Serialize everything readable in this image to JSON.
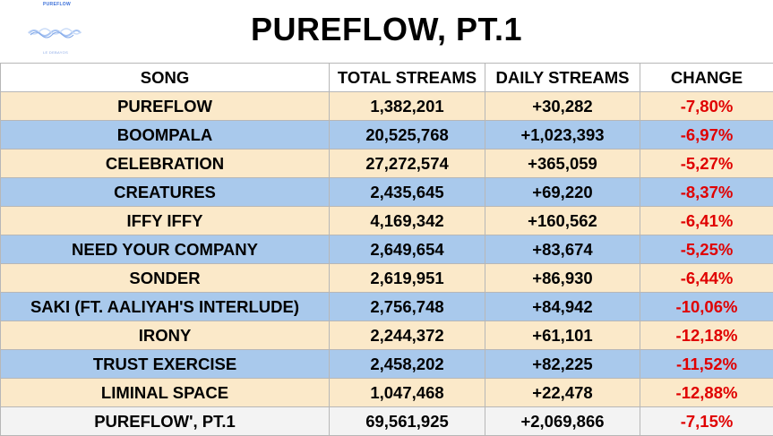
{
  "title": "PUREFLOW, PT.1",
  "logo": {
    "top_text": "PUREFLOW",
    "bottom_text": "LE DEBAYOS",
    "color": "#3a6fd8"
  },
  "colors": {
    "cream": "#fbe9c9",
    "blue": "#a9c9ec",
    "negative": "#e00000",
    "total_row": "#f3f3f3"
  },
  "chart_data": {
    "type": "table",
    "title": "PUREFLOW, PT.1",
    "columns": [
      "SONG",
      "TOTAL STREAMS",
      "DAILY STREAMS",
      "CHANGE"
    ],
    "rows": [
      {
        "song": "PUREFLOW",
        "total": "1,382,201",
        "daily": "+30,282",
        "change": "-7,80%",
        "style": "cream"
      },
      {
        "song": "BOOMPALA",
        "total": "20,525,768",
        "daily": "+1,023,393",
        "change": "-6,97%",
        "style": "blue"
      },
      {
        "song": "CELEBRATION",
        "total": "27,272,574",
        "daily": "+365,059",
        "change": "-5,27%",
        "style": "cream"
      },
      {
        "song": "CREATURES",
        "total": "2,435,645",
        "daily": "+69,220",
        "change": "-8,37%",
        "style": "blue"
      },
      {
        "song": "IFFY IFFY",
        "total": "4,169,342",
        "daily": "+160,562",
        "change": "-6,41%",
        "style": "cream"
      },
      {
        "song": "NEED YOUR COMPANY",
        "total": "2,649,654",
        "daily": "+83,674",
        "change": "-5,25%",
        "style": "blue"
      },
      {
        "song": "SONDER",
        "total": "2,619,951",
        "daily": "+86,930",
        "change": "-6,44%",
        "style": "cream"
      },
      {
        "song": "SAKI (FT. AALIYAH'S INTERLUDE)",
        "total": "2,756,748",
        "daily": "+84,942",
        "change": "-10,06%",
        "style": "blue"
      },
      {
        "song": "IRONY",
        "total": "2,244,372",
        "daily": "+61,101",
        "change": "-12,18%",
        "style": "cream"
      },
      {
        "song": "TRUST EXERCISE",
        "total": "2,458,202",
        "daily": "+82,225",
        "change": "-11,52%",
        "style": "blue"
      },
      {
        "song": "LIMINAL SPACE",
        "total": "1,047,468",
        "daily": "+22,478",
        "change": "-12,88%",
        "style": "cream"
      },
      {
        "song": "PUREFLOW', PT.1",
        "total": "69,561,925",
        "daily": "+2,069,866",
        "change": "-7,15%",
        "style": "total"
      }
    ]
  }
}
